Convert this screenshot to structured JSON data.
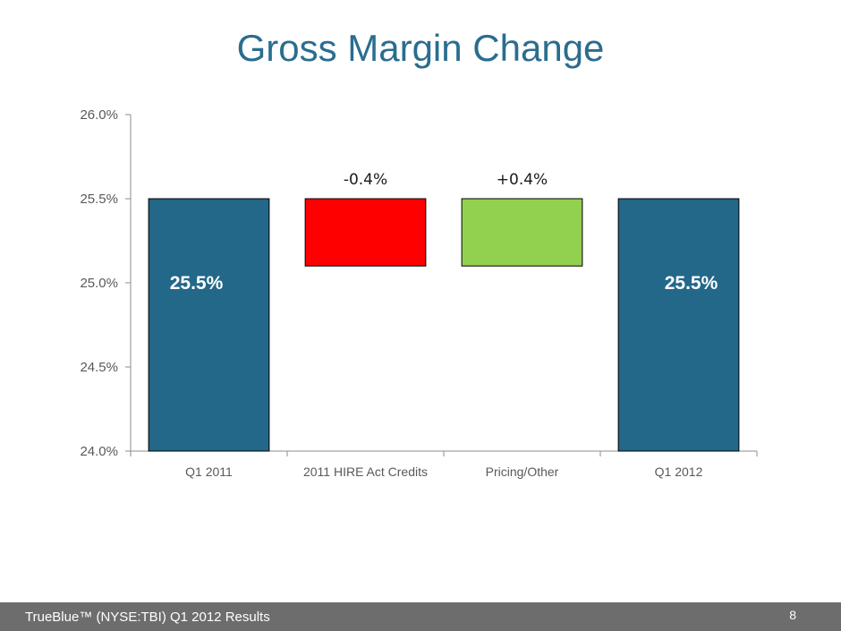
{
  "slide": {
    "title": "Gross Margin Change",
    "footer": "TrueBlue™ (NYSE:TBI) Q1 2012 Results",
    "page_number": "8"
  },
  "colors": {
    "total_bar": "#236789",
    "decrease_bar": "#ff0000",
    "increase_bar": "#92d050",
    "title": "#2a6d8f"
  },
  "chart_data": {
    "type": "bar",
    "subtype": "waterfall",
    "categories": [
      "Q1 2011",
      "2011 HIRE Act Credits",
      "Pricing/Other",
      "Q1 2012"
    ],
    "bars": [
      {
        "category": "Q1 2011",
        "kind": "total",
        "from": 24.0,
        "to": 25.5,
        "label": "25.5%"
      },
      {
        "category": "2011 HIRE Act Credits",
        "kind": "decrease",
        "from": 25.1,
        "to": 25.5,
        "label": "-0.4%"
      },
      {
        "category": "Pricing/Other",
        "kind": "increase",
        "from": 25.1,
        "to": 25.5,
        "label": "+0.4%"
      },
      {
        "category": "Q1 2012",
        "kind": "total",
        "from": 24.0,
        "to": 25.5,
        "label": "25.5%"
      }
    ],
    "ylim": [
      24.0,
      26.0
    ],
    "yticks": [
      24.0,
      24.5,
      25.0,
      25.5,
      26.0
    ],
    "ytick_labels": [
      "24.0%",
      "24.5%",
      "25.0%",
      "25.5%",
      "26.0%"
    ],
    "grid": false,
    "legend": "none"
  }
}
